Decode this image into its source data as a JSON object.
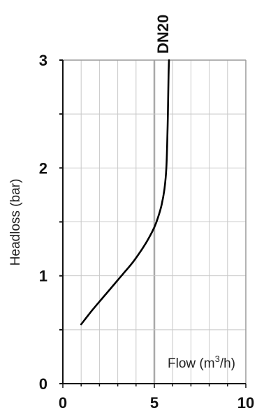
{
  "chart_data": {
    "type": "line",
    "title": "",
    "xlabel": "Flow (m³/h)",
    "xlabel_main": "Flow (m",
    "xlabel_sup": "3",
    "xlabel_tail": "/h)",
    "ylabel": "Headloss (bar)",
    "xlim": [
      0,
      10
    ],
    "ylim": [
      0,
      3
    ],
    "x_ticks": [
      0,
      5,
      10
    ],
    "y_ticks": [
      0,
      1,
      2,
      3
    ],
    "x_minor_step": 1,
    "y_minor_step": 0.5,
    "grid": true,
    "series": [
      {
        "name": "DN20",
        "color": "#000000",
        "points": [
          [
            1.0,
            0.55
          ],
          [
            1.6,
            0.68
          ],
          [
            2.2,
            0.8
          ],
          [
            2.8,
            0.92
          ],
          [
            3.3,
            1.02
          ],
          [
            3.8,
            1.12
          ],
          [
            4.3,
            1.24
          ],
          [
            4.7,
            1.35
          ],
          [
            5.0,
            1.45
          ],
          [
            5.2,
            1.54
          ],
          [
            5.4,
            1.66
          ],
          [
            5.55,
            1.8
          ],
          [
            5.65,
            1.98
          ],
          [
            5.7,
            2.2
          ],
          [
            5.74,
            2.5
          ],
          [
            5.77,
            2.8
          ],
          [
            5.8,
            3.0
          ]
        ]
      }
    ]
  },
  "colors": {
    "grid": "#c8c8c8",
    "major_grid": "#a8a8a8",
    "frame": "#9a9a9a",
    "axis": "#111111",
    "line": "#000000"
  }
}
